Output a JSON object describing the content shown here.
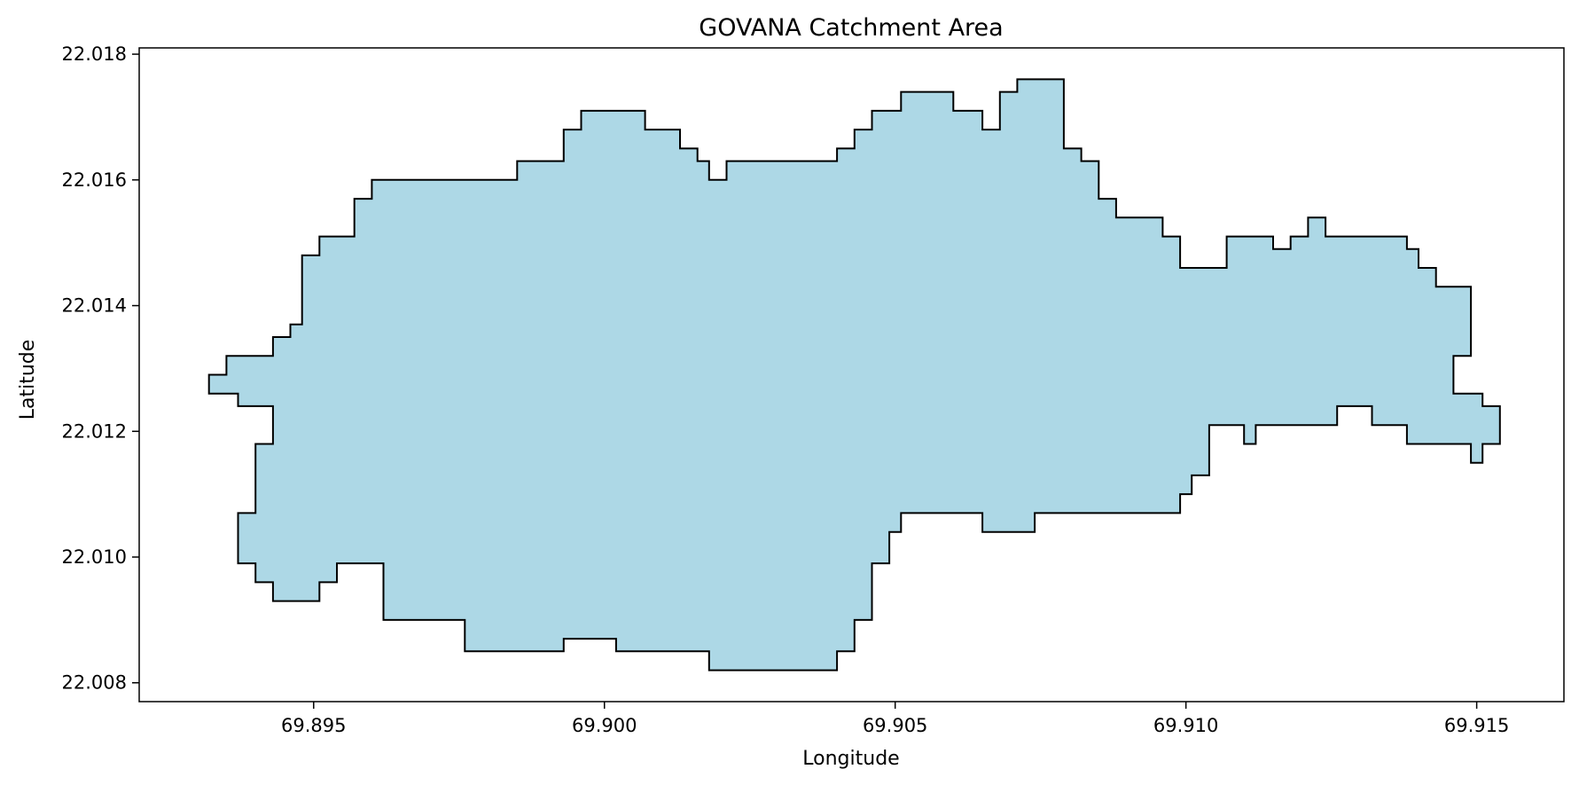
{
  "chart_data": {
    "type": "area",
    "title": "GOVANA Catchment Area",
    "xlabel": "Longitude",
    "ylabel": "Latitude",
    "xlim": [
      69.892,
      69.9165
    ],
    "ylim": [
      22.0077,
      22.0181
    ],
    "xticks": [
      69.895,
      69.9,
      69.905,
      69.91,
      69.915
    ],
    "xtick_labels": [
      "69.895",
      "69.900",
      "69.905",
      "69.910",
      "69.915"
    ],
    "yticks": [
      22.008,
      22.01,
      22.012,
      22.014,
      22.016,
      22.018
    ],
    "ytick_labels": [
      "22.008",
      "22.010",
      "22.012",
      "22.014",
      "22.016",
      "22.018"
    ],
    "grid": false,
    "series": [
      {
        "fill_color": "#add8e6",
        "edge_color": "#000000",
        "polygon": [
          [
            69.8932,
            22.0129
          ],
          [
            69.8935,
            22.0129
          ],
          [
            69.8935,
            22.0132
          ],
          [
            69.8943,
            22.0132
          ],
          [
            69.8943,
            22.0135
          ],
          [
            69.8946,
            22.0135
          ],
          [
            69.8946,
            22.0137
          ],
          [
            69.8948,
            22.0137
          ],
          [
            69.8948,
            22.0148
          ],
          [
            69.8951,
            22.0148
          ],
          [
            69.8951,
            22.0151
          ],
          [
            69.8957,
            22.0151
          ],
          [
            69.8957,
            22.0157
          ],
          [
            69.896,
            22.0157
          ],
          [
            69.896,
            22.016
          ],
          [
            69.8985,
            22.016
          ],
          [
            69.8985,
            22.0163
          ],
          [
            69.8993,
            22.0163
          ],
          [
            69.8993,
            22.0168
          ],
          [
            69.8996,
            22.0168
          ],
          [
            69.8996,
            22.0171
          ],
          [
            69.9007,
            22.0171
          ],
          [
            69.9007,
            22.0168
          ],
          [
            69.9013,
            22.0168
          ],
          [
            69.9013,
            22.0165
          ],
          [
            69.9016,
            22.0165
          ],
          [
            69.9016,
            22.0163
          ],
          [
            69.9018,
            22.0163
          ],
          [
            69.9018,
            22.016
          ],
          [
            69.9021,
            22.016
          ],
          [
            69.9021,
            22.0163
          ],
          [
            69.904,
            22.0163
          ],
          [
            69.904,
            22.0165
          ],
          [
            69.9043,
            22.0165
          ],
          [
            69.9043,
            22.0168
          ],
          [
            69.9046,
            22.0168
          ],
          [
            69.9046,
            22.0171
          ],
          [
            69.9051,
            22.0171
          ],
          [
            69.9051,
            22.0174
          ],
          [
            69.906,
            22.0174
          ],
          [
            69.906,
            22.0171
          ],
          [
            69.9065,
            22.0171
          ],
          [
            69.9065,
            22.0168
          ],
          [
            69.9068,
            22.0168
          ],
          [
            69.9068,
            22.0174
          ],
          [
            69.9071,
            22.0174
          ],
          [
            69.9071,
            22.0176
          ],
          [
            69.9079,
            22.0176
          ],
          [
            69.9079,
            22.0165
          ],
          [
            69.9082,
            22.0165
          ],
          [
            69.9082,
            22.0163
          ],
          [
            69.9085,
            22.0163
          ],
          [
            69.9085,
            22.0157
          ],
          [
            69.9088,
            22.0157
          ],
          [
            69.9088,
            22.0154
          ],
          [
            69.9096,
            22.0154
          ],
          [
            69.9096,
            22.0151
          ],
          [
            69.9099,
            22.0151
          ],
          [
            69.9099,
            22.0146
          ],
          [
            69.9107,
            22.0146
          ],
          [
            69.9107,
            22.0151
          ],
          [
            69.9115,
            22.0151
          ],
          [
            69.9115,
            22.0149
          ],
          [
            69.9118,
            22.0149
          ],
          [
            69.9118,
            22.0151
          ],
          [
            69.9121,
            22.0151
          ],
          [
            69.9121,
            22.0154
          ],
          [
            69.9124,
            22.0154
          ],
          [
            69.9124,
            22.0151
          ],
          [
            69.9138,
            22.0151
          ],
          [
            69.9138,
            22.0149
          ],
          [
            69.914,
            22.0149
          ],
          [
            69.914,
            22.0146
          ],
          [
            69.9143,
            22.0146
          ],
          [
            69.9143,
            22.0143
          ],
          [
            69.9149,
            22.0143
          ],
          [
            69.9149,
            22.0132
          ],
          [
            69.9146,
            22.0132
          ],
          [
            69.9146,
            22.0126
          ],
          [
            69.9151,
            22.0126
          ],
          [
            69.9151,
            22.0124
          ],
          [
            69.9154,
            22.0124
          ],
          [
            69.9154,
            22.0118
          ],
          [
            69.9151,
            22.0118
          ],
          [
            69.9151,
            22.0115
          ],
          [
            69.9149,
            22.0115
          ],
          [
            69.9149,
            22.0118
          ],
          [
            69.9138,
            22.0118
          ],
          [
            69.9138,
            22.0121
          ],
          [
            69.9132,
            22.0121
          ],
          [
            69.9132,
            22.0124
          ],
          [
            69.9126,
            22.0124
          ],
          [
            69.9126,
            22.0121
          ],
          [
            69.9112,
            22.0121
          ],
          [
            69.9112,
            22.0118
          ],
          [
            69.911,
            22.0118
          ],
          [
            69.911,
            22.0121
          ],
          [
            69.9104,
            22.0121
          ],
          [
            69.9104,
            22.0113
          ],
          [
            69.9101,
            22.0113
          ],
          [
            69.9101,
            22.011
          ],
          [
            69.9099,
            22.011
          ],
          [
            69.9099,
            22.0107
          ],
          [
            69.9074,
            22.0107
          ],
          [
            69.9074,
            22.0104
          ],
          [
            69.9065,
            22.0104
          ],
          [
            69.9065,
            22.0107
          ],
          [
            69.9051,
            22.0107
          ],
          [
            69.9051,
            22.0104
          ],
          [
            69.9049,
            22.0104
          ],
          [
            69.9049,
            22.0099
          ],
          [
            69.9046,
            22.0099
          ],
          [
            69.9046,
            22.009
          ],
          [
            69.9043,
            22.009
          ],
          [
            69.9043,
            22.0085
          ],
          [
            69.904,
            22.0085
          ],
          [
            69.904,
            22.0082
          ],
          [
            69.9018,
            22.0082
          ],
          [
            69.9018,
            22.0085
          ],
          [
            69.9002,
            22.0085
          ],
          [
            69.9002,
            22.0087
          ],
          [
            69.8993,
            22.0087
          ],
          [
            69.8993,
            22.0085
          ],
          [
            69.8976,
            22.0085
          ],
          [
            69.8976,
            22.009
          ],
          [
            69.8962,
            22.009
          ],
          [
            69.8962,
            22.0099
          ],
          [
            69.8954,
            22.0099
          ],
          [
            69.8954,
            22.0096
          ],
          [
            69.8951,
            22.0096
          ],
          [
            69.8951,
            22.0093
          ],
          [
            69.8943,
            22.0093
          ],
          [
            69.8943,
            22.0096
          ],
          [
            69.894,
            22.0096
          ],
          [
            69.894,
            22.0099
          ],
          [
            69.8937,
            22.0099
          ],
          [
            69.8937,
            22.0107
          ],
          [
            69.894,
            22.0107
          ],
          [
            69.894,
            22.0118
          ],
          [
            69.8943,
            22.0118
          ],
          [
            69.8943,
            22.0124
          ],
          [
            69.8937,
            22.0124
          ],
          [
            69.8937,
            22.0126
          ],
          [
            69.8932,
            22.0126
          ]
        ]
      }
    ]
  }
}
